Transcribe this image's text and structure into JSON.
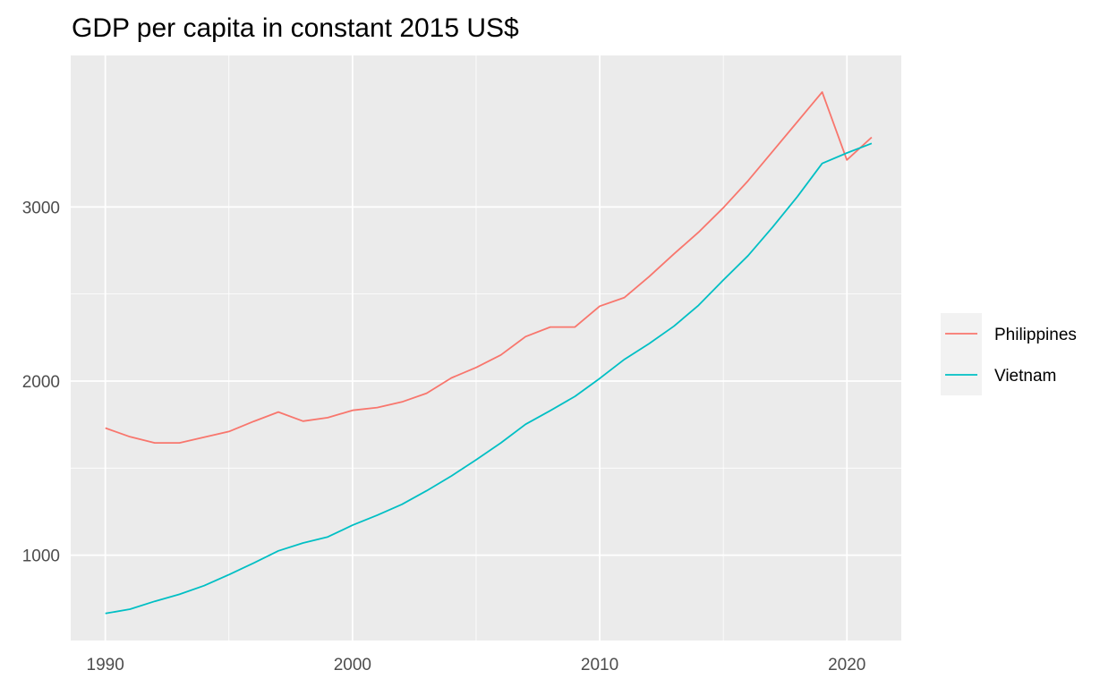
{
  "chart_data": {
    "type": "line",
    "title": "GDP per capita in constant 2015 US$",
    "xlabel": "",
    "ylabel": "",
    "x": [
      1990,
      1991,
      1992,
      1993,
      1994,
      1995,
      1996,
      1997,
      1998,
      1999,
      2000,
      2001,
      2002,
      2003,
      2004,
      2005,
      2006,
      2007,
      2008,
      2009,
      2010,
      2011,
      2012,
      2013,
      2014,
      2015,
      2016,
      2017,
      2018,
      2019,
      2020,
      2021
    ],
    "xlim": [
      1988.6,
      2022.2
    ],
    "ylim": [
      510,
      3870
    ],
    "xticks": [
      1990,
      2000,
      2010,
      2020
    ],
    "yticks": [
      1000,
      2000,
      3000
    ],
    "grid": true,
    "legend_position": "right",
    "series": [
      {
        "name": "Philippines",
        "color": "#F8766D",
        "values": [
          1730,
          1680,
          1645,
          1645,
          1678,
          1710,
          1768,
          1822,
          1770,
          1790,
          1832,
          1848,
          1880,
          1930,
          2018,
          2078,
          2150,
          2255,
          2310,
          2310,
          2430,
          2480,
          2600,
          2730,
          2855,
          2995,
          3150,
          3320,
          3490,
          3660,
          3270,
          3400
        ]
      },
      {
        "name": "Vietnam",
        "color": "#00BFC4",
        "values": [
          665,
          690,
          735,
          775,
          825,
          888,
          955,
          1025,
          1070,
          1105,
          1172,
          1230,
          1292,
          1370,
          1455,
          1548,
          1645,
          1752,
          1830,
          1912,
          2015,
          2125,
          2215,
          2315,
          2435,
          2580,
          2720,
          2885,
          3060,
          3250,
          3310,
          3365
        ]
      }
    ]
  }
}
